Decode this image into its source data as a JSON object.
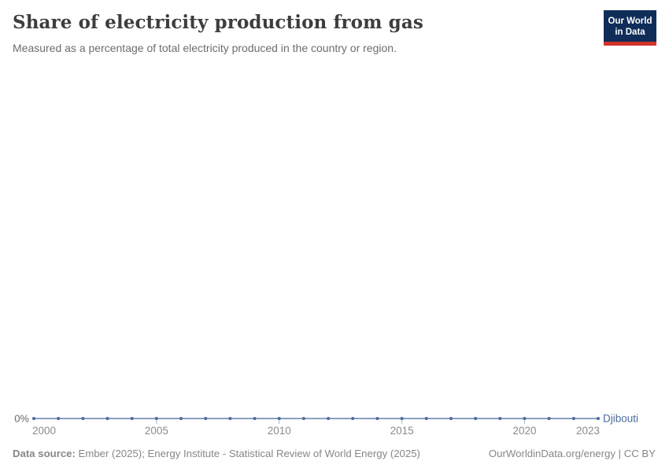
{
  "header": {
    "title": "Share of electricity production from gas",
    "subtitle": "Measured as a percentage of total electricity produced in the country or region.",
    "logo": {
      "line1": "Our World",
      "line2": "in Data"
    }
  },
  "chart_data": {
    "type": "line",
    "title": "Share of electricity production from gas",
    "xlabel": "",
    "ylabel": "",
    "unit": "%",
    "grid": false,
    "legend_position": "end-of-line",
    "xlim": [
      2000,
      2023
    ],
    "x_ticks": [
      2000,
      2005,
      2010,
      2015,
      2020,
      2023
    ],
    "y_ticks": [
      {
        "value": 0,
        "label": "0%"
      }
    ],
    "series": [
      {
        "name": "Djibouti",
        "color": "#4c6a9c",
        "x": [
          2000,
          2001,
          2002,
          2003,
          2004,
          2005,
          2006,
          2007,
          2008,
          2009,
          2010,
          2011,
          2012,
          2013,
          2014,
          2015,
          2016,
          2017,
          2018,
          2019,
          2020,
          2021,
          2022,
          2023
        ],
        "values": [
          0,
          0,
          0,
          0,
          0,
          0,
          0,
          0,
          0,
          0,
          0,
          0,
          0,
          0,
          0,
          0,
          0,
          0,
          0,
          0,
          0,
          0,
          0,
          0
        ]
      }
    ]
  },
  "footer": {
    "datasource_label": "Data source:",
    "datasource_text": " Ember (2025); Energy Institute - Statistical Review of World Energy (2025)",
    "link_text": "OurWorldinData.org/energy | CC BY"
  },
  "colors": {
    "line": "#4c6a9c",
    "marker": "#4c6a9c",
    "tick_mark": "#b0b9c4",
    "year_label": "#8b8b8b",
    "y_label": "#6b6b6b",
    "entity_label": "#4c6a9c"
  }
}
